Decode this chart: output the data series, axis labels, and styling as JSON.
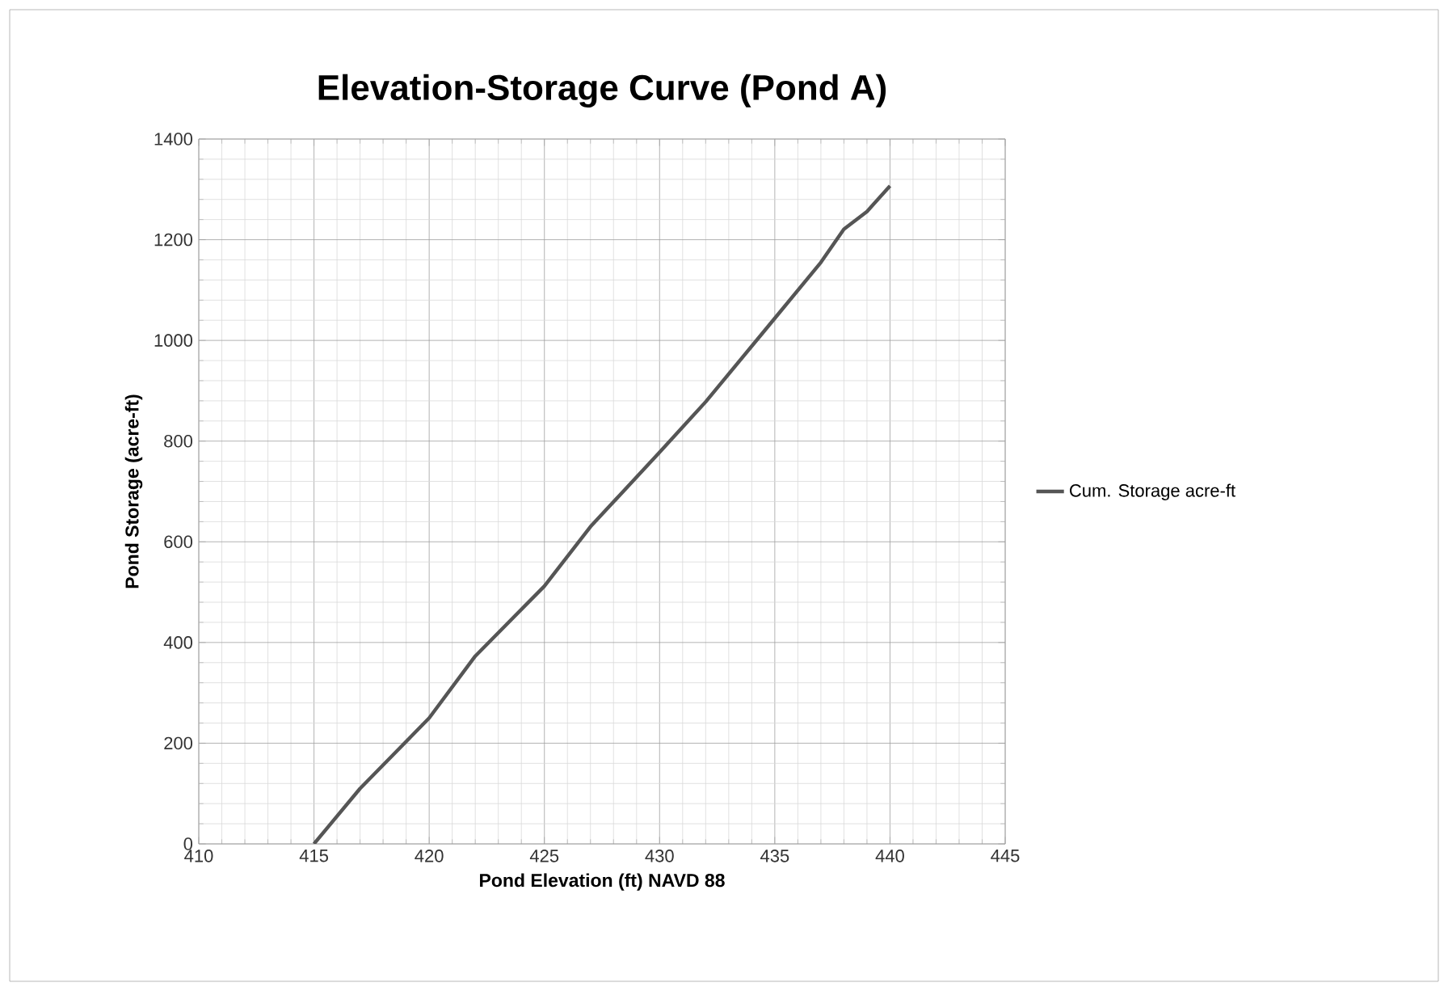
{
  "chart_data": {
    "type": "line",
    "title": "Elevation-Storage Curve (Pond A)",
    "xlabel": "Pond Elevation (ft) NAVD 88",
    "ylabel": "Pond Storage (acre-ft)",
    "x": [
      415,
      417,
      420,
      422,
      425,
      427,
      430,
      432,
      435,
      437,
      438,
      439,
      440
    ],
    "series": [
      {
        "name": "Cum. Storage acre-ft",
        "color": "#555555",
        "values": [
          0,
          110,
          250,
          373,
          512,
          630,
          778,
          878,
          1044,
          1155,
          1221,
          1256,
          1307
        ]
      }
    ],
    "xlim": [
      410,
      445
    ],
    "xticks": [
      410,
      415,
      420,
      425,
      430,
      435,
      440,
      445
    ],
    "ylim": [
      0,
      1400
    ],
    "yticks": [
      0,
      200,
      400,
      600,
      800,
      1000,
      1200,
      1400
    ],
    "grid": true,
    "legend": "right",
    "marker": "none",
    "line_style": "solid"
  }
}
